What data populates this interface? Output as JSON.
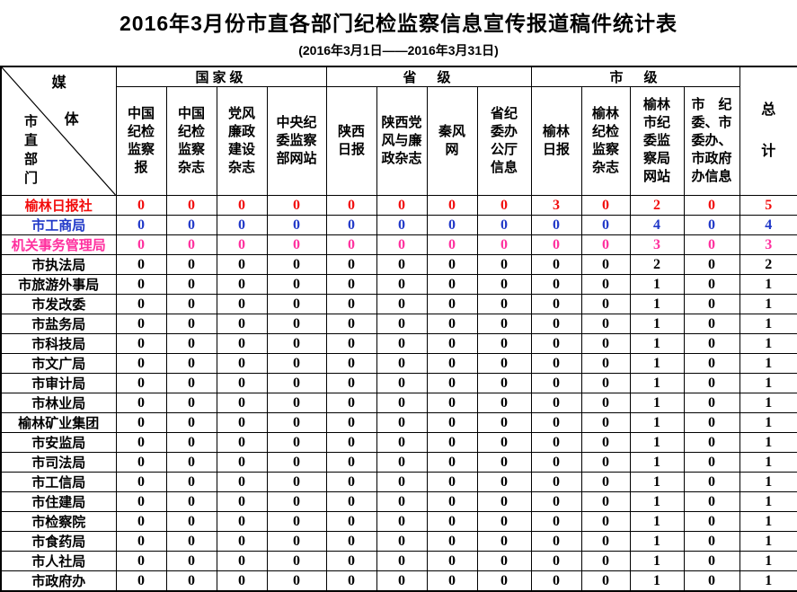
{
  "title": "2016年3月份市直各部门纪检监察信息宣传报道稿件统计表",
  "subtitle": "(2016年3月1日——2016年3月31日)",
  "colors": {
    "row_highlight_red": "#f20d0d",
    "row_highlight_blue": "#2038c8",
    "row_highlight_magenta": "#ff2f9e",
    "border": "#000000"
  },
  "table": {
    "corner": {
      "media": [
        "媒",
        "体"
      ],
      "dept": "市直部门"
    },
    "groups": [
      {
        "label": "国家级",
        "span": 4
      },
      {
        "label": "省　级",
        "span": 4
      },
      {
        "label": "市　级",
        "span": 4
      }
    ],
    "total_label": "总\n计",
    "columns": [
      "中国\n纪检\n监察\n报",
      "中国\n纪检\n监察\n杂志",
      "党风\n廉政\n建设\n杂志",
      "中央纪\n委监察\n部网站",
      "陕西\n日报",
      "陕西党\n风与廉\n政杂志",
      "秦风\n网",
      "省纪\n委办\n公厅\n信息",
      "榆林\n日报",
      "榆林\n纪检\n监察\n杂志",
      "榆林\n市纪\n委监\n察局\n网站",
      "市　纪\n委、市\n委办、\n市政府\n办信息"
    ],
    "rows": [
      {
        "name": "榆林日报社",
        "color": "#f20d0d",
        "values": [
          0,
          0,
          0,
          0,
          0,
          0,
          0,
          0,
          3,
          0,
          2,
          0
        ],
        "total": 5
      },
      {
        "name": "市工商局",
        "color": "#2038c8",
        "values": [
          0,
          0,
          0,
          0,
          0,
          0,
          0,
          0,
          0,
          0,
          4,
          0
        ],
        "total": 4
      },
      {
        "name": "机关事务管理局",
        "color": "#ff2f9e",
        "values": [
          0,
          0,
          0,
          0,
          0,
          0,
          0,
          0,
          0,
          0,
          3,
          0
        ],
        "total": 3
      },
      {
        "name": "市执法局",
        "color": "#000000",
        "values": [
          0,
          0,
          0,
          0,
          0,
          0,
          0,
          0,
          0,
          0,
          2,
          0
        ],
        "total": 2
      },
      {
        "name": "市旅游外事局",
        "color": "#000000",
        "values": [
          0,
          0,
          0,
          0,
          0,
          0,
          0,
          0,
          0,
          0,
          1,
          0
        ],
        "total": 1
      },
      {
        "name": "市发改委",
        "color": "#000000",
        "values": [
          0,
          0,
          0,
          0,
          0,
          0,
          0,
          0,
          0,
          0,
          1,
          0
        ],
        "total": 1
      },
      {
        "name": "市盐务局",
        "color": "#000000",
        "values": [
          0,
          0,
          0,
          0,
          0,
          0,
          0,
          0,
          0,
          0,
          1,
          0
        ],
        "total": 1
      },
      {
        "name": "市科技局",
        "color": "#000000",
        "values": [
          0,
          0,
          0,
          0,
          0,
          0,
          0,
          0,
          0,
          0,
          1,
          0
        ],
        "total": 1
      },
      {
        "name": "市文广局",
        "color": "#000000",
        "values": [
          0,
          0,
          0,
          0,
          0,
          0,
          0,
          0,
          0,
          0,
          1,
          0
        ],
        "total": 1
      },
      {
        "name": "市审计局",
        "color": "#000000",
        "values": [
          0,
          0,
          0,
          0,
          0,
          0,
          0,
          0,
          0,
          0,
          1,
          0
        ],
        "total": 1
      },
      {
        "name": "市林业局",
        "color": "#000000",
        "values": [
          0,
          0,
          0,
          0,
          0,
          0,
          0,
          0,
          0,
          0,
          1,
          0
        ],
        "total": 1
      },
      {
        "name": "榆林矿业集团",
        "color": "#000000",
        "values": [
          0,
          0,
          0,
          0,
          0,
          0,
          0,
          0,
          0,
          0,
          1,
          0
        ],
        "total": 1
      },
      {
        "name": "市安监局",
        "color": "#000000",
        "values": [
          0,
          0,
          0,
          0,
          0,
          0,
          0,
          0,
          0,
          0,
          1,
          0
        ],
        "total": 1
      },
      {
        "name": "市司法局",
        "color": "#000000",
        "values": [
          0,
          0,
          0,
          0,
          0,
          0,
          0,
          0,
          0,
          0,
          1,
          0
        ],
        "total": 1
      },
      {
        "name": "市工信局",
        "color": "#000000",
        "values": [
          0,
          0,
          0,
          0,
          0,
          0,
          0,
          0,
          0,
          0,
          1,
          0
        ],
        "total": 1
      },
      {
        "name": "市住建局",
        "color": "#000000",
        "values": [
          0,
          0,
          0,
          0,
          0,
          0,
          0,
          0,
          0,
          0,
          1,
          0
        ],
        "total": 1
      },
      {
        "name": "市检察院",
        "color": "#000000",
        "values": [
          0,
          0,
          0,
          0,
          0,
          0,
          0,
          0,
          0,
          0,
          1,
          0
        ],
        "total": 1
      },
      {
        "name": "市食药局",
        "color": "#000000",
        "values": [
          0,
          0,
          0,
          0,
          0,
          0,
          0,
          0,
          0,
          0,
          1,
          0
        ],
        "total": 1
      },
      {
        "name": "市人社局",
        "color": "#000000",
        "values": [
          0,
          0,
          0,
          0,
          0,
          0,
          0,
          0,
          0,
          0,
          1,
          0
        ],
        "total": 1
      },
      {
        "name": "市政府办",
        "color": "#000000",
        "values": [
          0,
          0,
          0,
          0,
          0,
          0,
          0,
          0,
          0,
          0,
          1,
          0
        ],
        "total": 1
      }
    ]
  }
}
